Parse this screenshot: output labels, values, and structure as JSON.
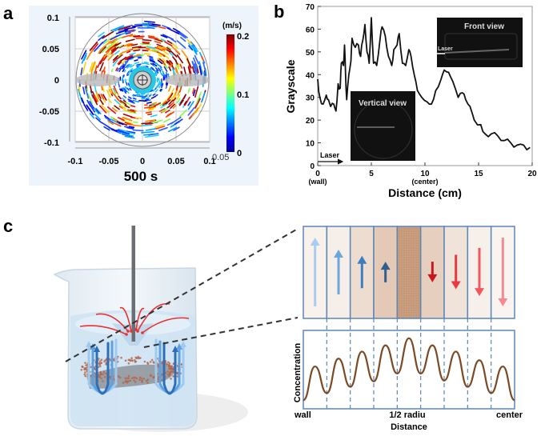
{
  "panel_labels": {
    "a": "a",
    "b": "b",
    "c": "c"
  },
  "colors": {
    "beaker_liquid": "#cfe3f3",
    "particles": "#b4644a",
    "up_arrow_dark": "#2f5f8f",
    "down_arrow_dark": "#c8161d",
    "curve": "#7b4a24",
    "frame": "#5b86b8"
  },
  "chart_data": [
    {
      "panel": "a",
      "type": "heatmap",
      "title": "500 s",
      "x_ticks": [
        "-0.1",
        "-0.05",
        "0",
        "0.05",
        "0.1"
      ],
      "x_tick_values": [
        -0.1,
        -0.05,
        0,
        0.05,
        0.1
      ],
      "y_ticks": [
        "0.1",
        "0.05",
        "0",
        "-0.05",
        "-0.1"
      ],
      "y_tick_values": [
        0.1,
        0.05,
        0,
        -0.05,
        -0.1
      ],
      "xlim": [
        -0.1,
        0.1
      ],
      "ylim": [
        -0.1,
        0.1
      ],
      "grid": true,
      "colorbar": {
        "unit": "(m/s)",
        "ticks": [
          "0.2",
          "0.1",
          "0"
        ],
        "tick_values": [
          0.2,
          0.1,
          0
        ],
        "extra_label": "0.05",
        "range": [
          0,
          0.2
        ],
        "colormap": "jet"
      }
    },
    {
      "panel": "b",
      "type": "line",
      "xlabel": "Distance (cm)",
      "ylabel": "Grayscale",
      "xlim": [
        0,
        20
      ],
      "ylim": [
        0,
        70
      ],
      "x_ticks": [
        "0",
        "5",
        "10",
        "15",
        "20"
      ],
      "x_tick_values": [
        0,
        5,
        10,
        15,
        20
      ],
      "x_sublabels": {
        "0": "(wall)",
        "10": "(center)"
      },
      "y_ticks": [
        "0",
        "10",
        "20",
        "30",
        "40",
        "50",
        "60",
        "70"
      ],
      "y_tick_values": [
        0,
        10,
        20,
        30,
        40,
        50,
        60,
        70
      ],
      "grid": false,
      "annotations": {
        "laser": "Laser",
        "inset_vertical": "Vertical view",
        "inset_front": "Front view",
        "inset_front_laser": "Laser"
      },
      "series": [
        {
          "x": [
            0,
            0.2,
            0.5,
            0.8,
            1.0,
            1.2,
            1.5,
            1.7,
            1.9,
            2.1,
            2.2,
            2.4,
            2.5,
            2.6,
            2.7,
            2.9,
            3.1,
            3.2,
            3.5,
            3.8,
            4.0,
            4.2,
            4.4,
            4.6,
            4.8,
            5.0,
            5.2,
            5.5,
            5.8,
            6.0,
            6.3,
            6.6,
            6.9,
            7.1,
            7.4,
            7.6,
            7.9,
            8.2,
            8.5,
            8.7,
            9.0,
            9.3,
            9.7,
            10.2,
            10.6,
            11.0,
            11.5,
            11.8,
            12.2,
            12.6,
            13.1,
            13.5,
            13.8,
            14.2,
            14.6,
            15.2,
            15.6,
            16.2,
            16.8,
            17.4,
            18.0,
            18.6,
            19.2,
            19.8
          ],
          "y": [
            38,
            30,
            27,
            31,
            29,
            26,
            27,
            24,
            36,
            34,
            45,
            44,
            53,
            40,
            29,
            40,
            46,
            56,
            52,
            53,
            48,
            55,
            62,
            50,
            45,
            65,
            45,
            44,
            55,
            61,
            57,
            48,
            44,
            51,
            53,
            58,
            45,
            44,
            51,
            48,
            40,
            33,
            30,
            28,
            27,
            33,
            38,
            42,
            41,
            37,
            30,
            32,
            29,
            26,
            20,
            18,
            14,
            14,
            13,
            11,
            10,
            9,
            9,
            8
          ]
        }
      ]
    },
    {
      "panel": "c",
      "type": "line",
      "xlabel": "Distance",
      "ylabel": "Concentration",
      "x_ticks": [
        "wall",
        "1/2 radiu",
        "center"
      ],
      "layers": 9,
      "peaks": [
        0.54,
        0.64,
        0.73,
        0.81,
        0.9,
        0.81,
        0.73,
        0.62,
        0.54
      ],
      "troughs": [
        0.11,
        0.2,
        0.28,
        0.35,
        0.45,
        0.45,
        0.36,
        0.28,
        0.2,
        0.11
      ],
      "layer_velocity": [
        1,
        0.65,
        0.47,
        0.3,
        0,
        -0.3,
        -0.5,
        -0.7,
        -1
      ],
      "layer_shades": [
        "#f8f1ec",
        "#f6eee8",
        "#eddcd0",
        "#e3c9b6",
        "#cfa88c",
        "#e6cfbf",
        "#f0e3d9",
        "#f7f0ea",
        "#f9f4f0"
      ],
      "arrow_colors": [
        "#a9cdee",
        "#6ea6dc",
        "#3f7ebd",
        "#2f5f8f",
        "#ffffff",
        "#c8161d",
        "#ea3a3f",
        "#f0575e",
        "#f58a90"
      ]
    }
  ]
}
